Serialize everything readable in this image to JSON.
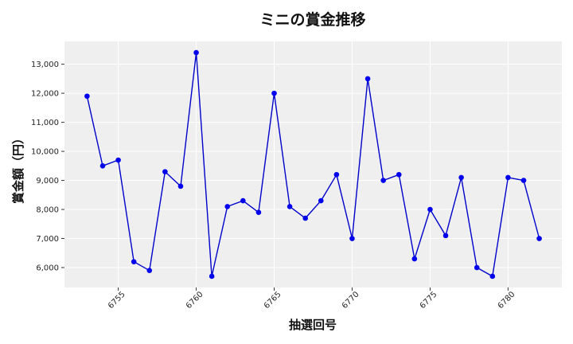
{
  "chart_data": {
    "type": "line",
    "title": "ミニの賞金推移",
    "xlabel": "抽選回号",
    "ylabel": "賞金額（円）",
    "x": [
      6753,
      6754,
      6755,
      6756,
      6757,
      6758,
      6759,
      6760,
      6761,
      6762,
      6763,
      6764,
      6765,
      6766,
      6767,
      6768,
      6769,
      6770,
      6771,
      6772,
      6773,
      6774,
      6775,
      6776,
      6777,
      6778,
      6779,
      6780,
      6781,
      6782
    ],
    "series": [
      {
        "values": [
          11900,
          9500,
          9700,
          6200,
          5900,
          9300,
          8800,
          13400,
          5700,
          8100,
          8300,
          7900,
          12000,
          8100,
          7700,
          8300,
          9200,
          7000,
          12500,
          9000,
          9200,
          6300,
          8000,
          7100,
          9100,
          6000,
          5700,
          9100,
          9000,
          7000
        ],
        "color": "#0000cc"
      }
    ],
    "xlim": [
      6751.55,
      6783.45
    ],
    "ylim": [
      5315,
      13785
    ],
    "x_ticks": [
      6755,
      6760,
      6765,
      6770,
      6775,
      6780
    ],
    "x_tick_labels": [
      "6755",
      "6760",
      "6765",
      "6770",
      "6775",
      "6780"
    ],
    "y_ticks": [
      6000,
      7000,
      8000,
      9000,
      10000,
      11000,
      12000,
      13000
    ],
    "y_tick_labels": [
      "6,000",
      "7,000",
      "8,000",
      "9,000",
      "10,000",
      "11,000",
      "12,000",
      "13,000"
    ],
    "grid": true,
    "plot_background": "#efefef",
    "grid_color": "#ffffff",
    "line_color": "#0000cc",
    "marker_color": "#0000ee"
  }
}
